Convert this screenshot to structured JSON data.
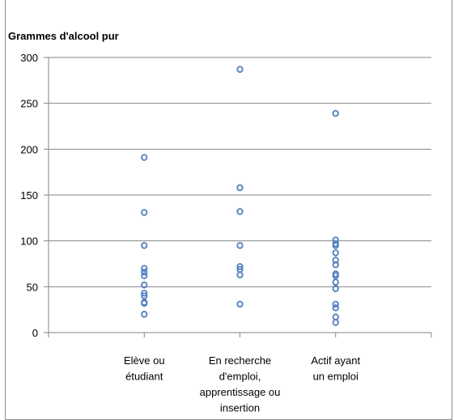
{
  "chart_data": {
    "type": "scatter",
    "title": "Grammes d'alcool pur",
    "xlabel": "",
    "ylabel": "",
    "ylim": [
      0,
      300
    ],
    "yticks": [
      0,
      50,
      100,
      150,
      200,
      250,
      300
    ],
    "grid": true,
    "categories": [
      [
        "Elève ou",
        "étudiant"
      ],
      [
        "En recherche",
        "d'emploi,",
        "apprentissage ou",
        "insertion"
      ],
      [
        "Actif ayant",
        "un emploi"
      ]
    ],
    "points": [
      [
        191,
        131,
        95,
        70,
        66,
        62,
        52,
        43,
        40,
        33,
        32,
        20
      ],
      [
        287,
        158,
        132,
        95,
        72,
        69,
        63,
        31
      ],
      [
        239,
        101,
        97,
        95,
        87,
        79,
        74,
        64,
        62,
        55,
        48,
        31,
        27,
        17,
        11
      ]
    ],
    "marker_color": "#4f7fbd",
    "grid_color": "#868686"
  }
}
